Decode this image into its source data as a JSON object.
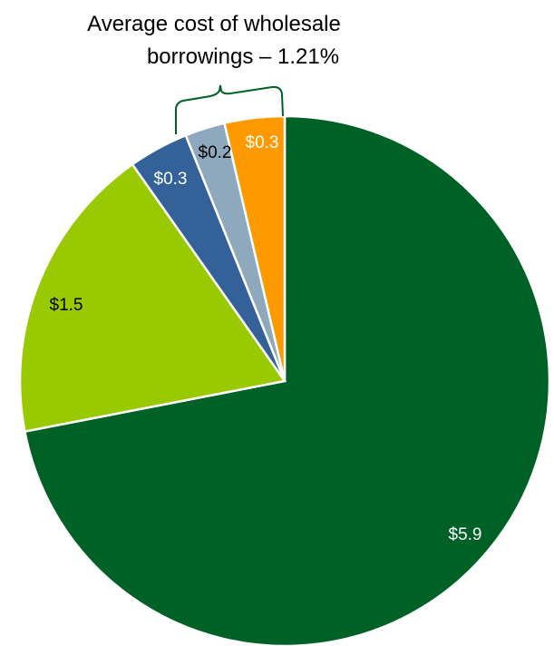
{
  "chart_data": {
    "type": "pie",
    "title": "",
    "start_angle_deg": 0,
    "direction": "clockwise",
    "slices": [
      {
        "value": 5.9,
        "label": "$5.9",
        "color": "#006127",
        "label_color": "#ffffff"
      },
      {
        "value": 1.5,
        "label": "$1.5",
        "color": "#99c900",
        "label_color": "#000000"
      },
      {
        "value": 0.3,
        "label": "$0.3",
        "color": "#346197",
        "label_color": "#ffffff"
      },
      {
        "value": 0.2,
        "label": "$0.2",
        "color": "#8ea8bd",
        "label_color": "#000000"
      },
      {
        "value": 0.3,
        "label": "$0.3",
        "color": "#ff9900",
        "label_color": "#ffffff"
      }
    ],
    "annotation": {
      "lines": [
        "Average cost of wholesale",
        "borrowings – 1.21%"
      ],
      "bracket_color": "#006127"
    }
  }
}
